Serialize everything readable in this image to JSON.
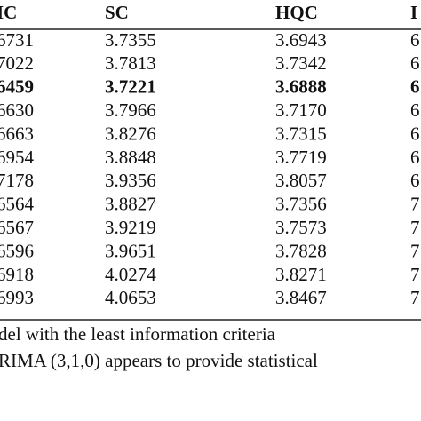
{
  "table": {
    "header": [
      "IC",
      "SC",
      "HQC",
      "I"
    ],
    "rows": [
      [
        "6731",
        "3.7355",
        "3.6943",
        "6"
      ],
      [
        "7022",
        "3.7813",
        "3.7342",
        "6"
      ],
      [
        "6459",
        "3.7221",
        "3.6888",
        "6"
      ],
      [
        "6630",
        "3.7966",
        "3.7170",
        "6"
      ],
      [
        "6663",
        "3.8276",
        "3.7315",
        "6"
      ],
      [
        "6954",
        "3.8848",
        "3.7719",
        "6"
      ],
      [
        "7178",
        "3.9356",
        "3.8057",
        "6"
      ],
      [
        "6564",
        "3.8827",
        "3.7356",
        "7"
      ],
      [
        "6567",
        "3.9219",
        "3.7573",
        "7"
      ],
      [
        "6596",
        "3.9651",
        "3.7828",
        "7"
      ],
      [
        "6918",
        "4.0274",
        "3.8271",
        "7"
      ],
      [
        "6993",
        "4.0653",
        "3.8467",
        "7"
      ]
    ],
    "bold_row": 2,
    "notes": [
      "del with the least information criteria",
      "RIMA (3,1,0) appears to provide statistical"
    ]
  }
}
